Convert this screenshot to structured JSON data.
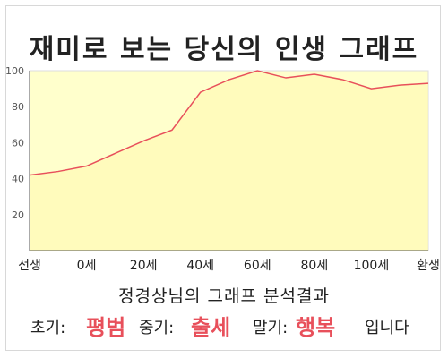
{
  "title": "재미로 보는 당신의 인생 그래프",
  "chart_data": {
    "type": "area",
    "x_categories": [
      "전생",
      "0세",
      "20세",
      "40세",
      "60세",
      "80세",
      "100세",
      "환생"
    ],
    "y_ticks": [
      20,
      40,
      60,
      80,
      100
    ],
    "ylim": [
      0,
      100
    ],
    "grid": false,
    "points": [
      {
        "x": 0,
        "y": 42
      },
      {
        "x": 0.5,
        "y": 44
      },
      {
        "x": 1,
        "y": 47
      },
      {
        "x": 1.5,
        "y": 54
      },
      {
        "x": 2,
        "y": 61
      },
      {
        "x": 2.5,
        "y": 67
      },
      {
        "x": 3,
        "y": 88
      },
      {
        "x": 3.5,
        "y": 95
      },
      {
        "x": 4,
        "y": 100
      },
      {
        "x": 4.5,
        "y": 96
      },
      {
        "x": 5,
        "y": 98
      },
      {
        "x": 5.5,
        "y": 95
      },
      {
        "x": 6,
        "y": 90
      },
      {
        "x": 6.5,
        "y": 92
      },
      {
        "x": 7,
        "y": 93
      }
    ],
    "line_color": "#e8505b",
    "fill_color": "#ffffcc"
  },
  "result": {
    "title": "정경상님의 그래프 분석결과",
    "early_label": "초기:",
    "early_value": "평범",
    "middle_label": "중기:",
    "middle_value": "출세",
    "late_label": "말기:",
    "late_value": "행복",
    "ending": "입니다"
  }
}
